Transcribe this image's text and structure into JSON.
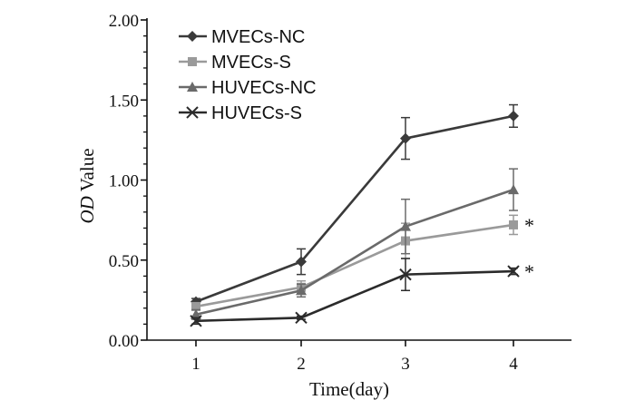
{
  "chart_data": {
    "type": "line",
    "title": "",
    "xlabel": "Time(day)",
    "ylabel_italic": "OD",
    "ylabel_rest": " Value",
    "x": [
      1,
      2,
      3,
      4
    ],
    "x_tick_labels": [
      "1",
      "2",
      "3",
      "4"
    ],
    "ylim": [
      0,
      2
    ],
    "y_ticks": [
      0,
      0.5,
      1,
      1.5,
      2
    ],
    "y_tick_labels": [
      "0.00",
      "0.50",
      "1.00",
      "1.50",
      "2.00"
    ],
    "legend_position": "top-left",
    "series": [
      {
        "name": "MVECs-NC",
        "marker": "diamond",
        "color": "#3a3a3a",
        "values": [
          0.24,
          0.49,
          1.26,
          1.4
        ],
        "errors": [
          0.02,
          0.08,
          0.13,
          0.07
        ]
      },
      {
        "name": "MVECs-S",
        "marker": "square",
        "color": "#9a9a9a",
        "values": [
          0.21,
          0.33,
          0.62,
          0.72
        ],
        "errors": [
          0.02,
          0.04,
          0.11,
          0.06
        ],
        "annotation": "*"
      },
      {
        "name": "HUVECs-NC",
        "marker": "triangle",
        "color": "#6a6a6a",
        "values": [
          0.16,
          0.31,
          0.71,
          0.94
        ],
        "errors": [
          0.03,
          0.04,
          0.17,
          0.13
        ]
      },
      {
        "name": "HUVECs-S",
        "marker": "x",
        "color": "#2b2b2b",
        "values": [
          0.12,
          0.14,
          0.41,
          0.43
        ],
        "errors": [
          0.02,
          0.01,
          0.1,
          0.02
        ],
        "annotation": "*"
      }
    ]
  }
}
